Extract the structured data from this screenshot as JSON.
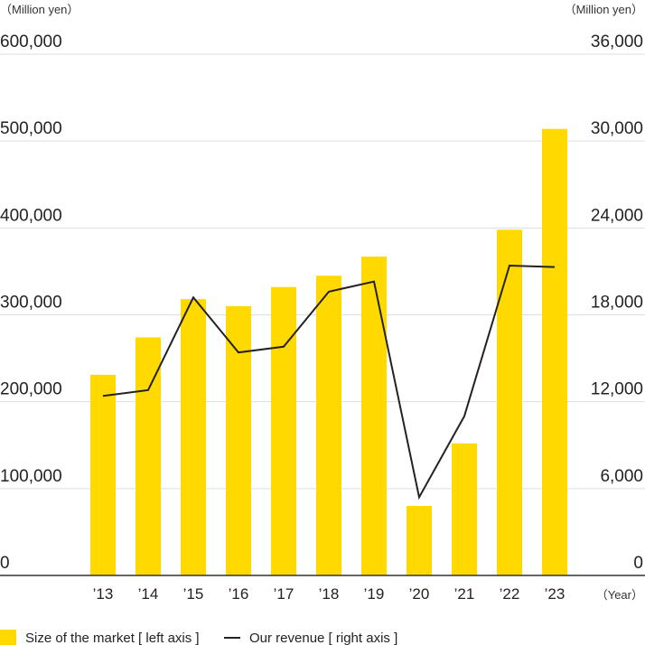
{
  "chart_data": {
    "type": "bar",
    "left_unit": "（Million yen）",
    "right_unit": "（Million yen）",
    "x_unit": "（Year）",
    "categories": [
      "’13",
      "’14",
      "’15",
      "’16",
      "’17",
      "’18",
      "’19",
      "’20",
      "’21",
      "’22",
      "’23"
    ],
    "left_axis": {
      "min": 0,
      "max": 600000,
      "ticks": [
        "0",
        "100,000",
        "200,000",
        "300,000",
        "400,000",
        "500,000",
        "600,000"
      ]
    },
    "right_axis": {
      "min": 0,
      "max": 36000,
      "ticks": [
        "0",
        "6,000",
        "12,000",
        "18,000",
        "24,000",
        "30,000",
        "36,000"
      ]
    },
    "series": [
      {
        "name": "Size of the market [ left axis ]",
        "type": "bar",
        "axis": "left",
        "values": [
          231000,
          274000,
          318000,
          310000,
          332000,
          345000,
          367000,
          80000,
          152000,
          398000,
          514000
        ]
      },
      {
        "name": "Our revenue [ right axis ]",
        "type": "line",
        "axis": "right",
        "values": [
          12400,
          12800,
          19200,
          15400,
          15800,
          19600,
          20300,
          5400,
          11000,
          21400,
          21300
        ]
      }
    ],
    "grid": true,
    "legend_position": "bottom-left",
    "colors": {
      "bar": "#FFD900",
      "line": "#222222",
      "grid": "#dddddd",
      "axis": "#333333"
    }
  }
}
